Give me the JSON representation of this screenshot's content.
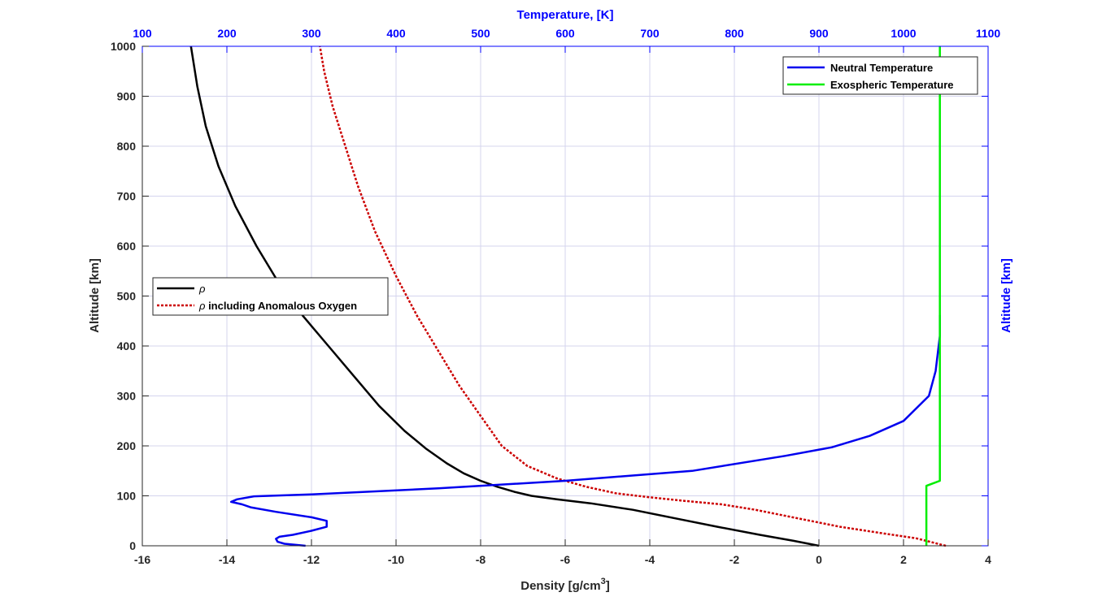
{
  "chart_data": {
    "type": "line",
    "xlabel_main": "Density [g/cm",
    "xlabel_sup": "3",
    "xlabel_close": "]",
    "ylabel_left": "Altitude [km]",
    "ylabel_right": "Altitude [km]",
    "xlabel_top": "Temperature, [K]",
    "x_bottom_range": [
      -16,
      4
    ],
    "x_top_range": [
      100,
      1100
    ],
    "y_range": [
      0,
      1000
    ],
    "x_bottom_ticks": [
      "-16",
      "-14",
      "-12",
      "-10",
      "-8",
      "-6",
      "-4",
      "-2",
      "0",
      "2",
      "4"
    ],
    "x_top_ticks": [
      "100",
      "200",
      "300",
      "400",
      "500",
      "600",
      "700",
      "800",
      "900",
      "1000",
      "1100"
    ],
    "y_ticks": [
      "0",
      "100",
      "200",
      "300",
      "400",
      "500",
      "600",
      "700",
      "800",
      "900",
      "1000"
    ],
    "grid": true,
    "colors": {
      "rho": "#000000",
      "rho_ao": "#cc0000",
      "neutral_temp": "#0000ee",
      "exo_temp": "#00ee00",
      "top_axis": "#0000ff",
      "grid": "#d4d4ee"
    },
    "legend_left": {
      "entries": [
        {
          "label_symbol": "ρ",
          "label_rest": ""
        },
        {
          "label_symbol": "ρ",
          "label_rest": " including Anomalous Oxygen"
        }
      ]
    },
    "legend_right": {
      "entries": [
        {
          "label": "Neutral Temperature"
        },
        {
          "label": "Exospheric Temperature"
        }
      ]
    },
    "series_density": [
      {
        "name": "rho",
        "axis": "bottom",
        "points": [
          [
            0.0,
            0
          ],
          [
            -0.6,
            10
          ],
          [
            -1.4,
            22
          ],
          [
            -2.4,
            38
          ],
          [
            -3.4,
            55
          ],
          [
            -4.4,
            72
          ],
          [
            -5.4,
            85
          ],
          [
            -6.2,
            93
          ],
          [
            -6.8,
            100
          ],
          [
            -7.2,
            108
          ],
          [
            -7.6,
            118
          ],
          [
            -8.0,
            130
          ],
          [
            -8.4,
            145
          ],
          [
            -8.8,
            165
          ],
          [
            -9.3,
            195
          ],
          [
            -9.8,
            230
          ],
          [
            -10.4,
            280
          ],
          [
            -11.0,
            340
          ],
          [
            -11.6,
            400
          ],
          [
            -12.2,
            460
          ],
          [
            -12.8,
            530
          ],
          [
            -13.3,
            600
          ],
          [
            -13.8,
            680
          ],
          [
            -14.2,
            760
          ],
          [
            -14.5,
            840
          ],
          [
            -14.7,
            920
          ],
          [
            -14.85,
            1000
          ]
        ]
      },
      {
        "name": "rho_ao",
        "axis": "bottom",
        "points": [
          [
            3.0,
            0
          ],
          [
            2.3,
            15
          ],
          [
            1.5,
            25
          ],
          [
            0.5,
            38
          ],
          [
            -0.5,
            55
          ],
          [
            -1.5,
            72
          ],
          [
            -2.3,
            83
          ],
          [
            -3.2,
            90
          ],
          [
            -4.0,
            97
          ],
          [
            -4.8,
            105
          ],
          [
            -5.5,
            118
          ],
          [
            -6.2,
            135
          ],
          [
            -6.9,
            160
          ],
          [
            -7.5,
            200
          ],
          [
            -8.0,
            260
          ],
          [
            -8.5,
            320
          ],
          [
            -9.0,
            390
          ],
          [
            -9.5,
            460
          ],
          [
            -10.0,
            540
          ],
          [
            -10.5,
            630
          ],
          [
            -10.9,
            720
          ],
          [
            -11.2,
            800
          ],
          [
            -11.5,
            880
          ],
          [
            -11.7,
            950
          ],
          [
            -11.8,
            1000
          ]
        ]
      }
    ],
    "series_temperature": [
      {
        "name": "Neutral Temperature",
        "axis": "top",
        "points": [
          [
            293,
            0
          ],
          [
            268,
            4
          ],
          [
            260,
            8
          ],
          [
            258,
            14
          ],
          [
            262,
            18
          ],
          [
            278,
            22
          ],
          [
            300,
            30
          ],
          [
            318,
            38
          ],
          [
            318,
            50
          ],
          [
            300,
            57
          ],
          [
            258,
            68
          ],
          [
            228,
            77
          ],
          [
            218,
            83
          ],
          [
            205,
            88
          ],
          [
            212,
            93
          ],
          [
            232,
            99
          ],
          [
            300,
            103
          ],
          [
            450,
            115
          ],
          [
            600,
            130
          ],
          [
            750,
            150
          ],
          [
            860,
            180
          ],
          [
            915,
            197
          ],
          [
            960,
            220
          ],
          [
            1000,
            250
          ],
          [
            1030,
            300
          ],
          [
            1038,
            350
          ],
          [
            1043,
            420
          ],
          [
            1043,
            462
          ]
        ]
      },
      {
        "name": "Exospheric Temperature",
        "axis": "top",
        "points": [
          [
            1027,
            0
          ],
          [
            1027,
            120
          ],
          [
            1043,
            130
          ],
          [
            1043,
            1000
          ]
        ]
      }
    ]
  }
}
